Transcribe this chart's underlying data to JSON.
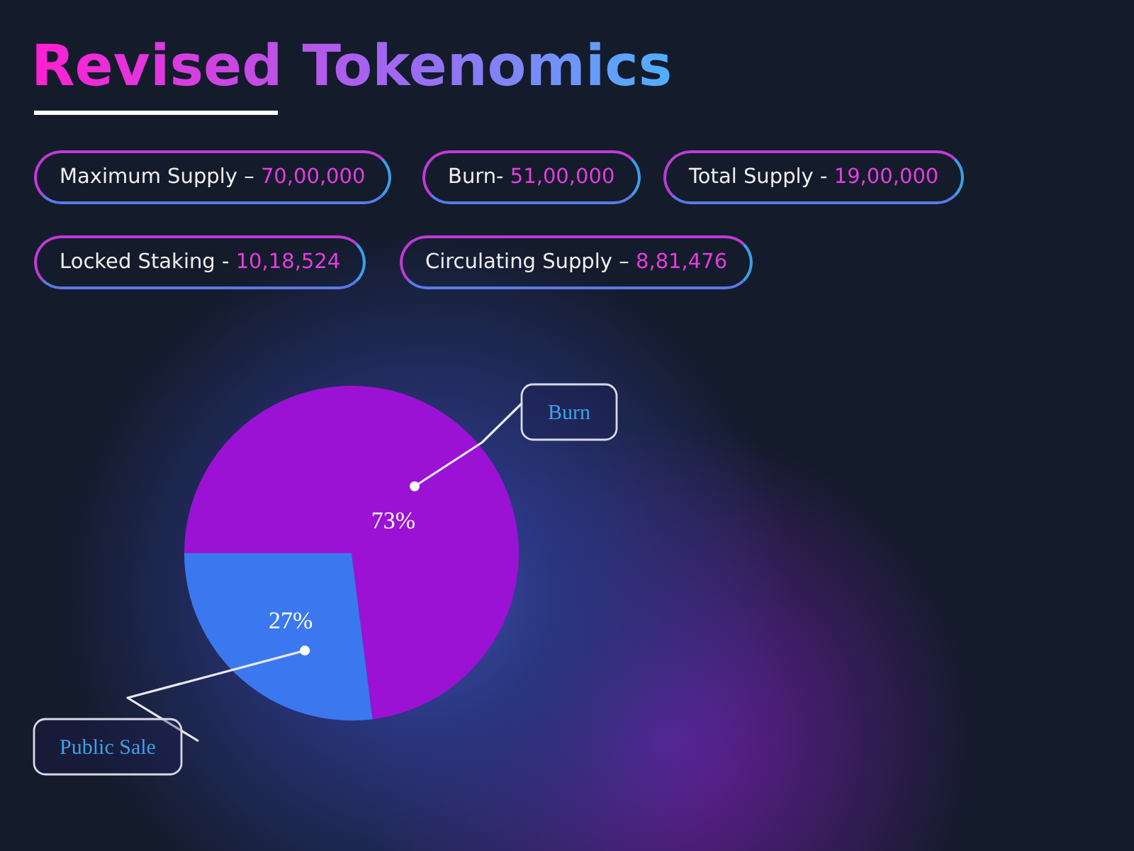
{
  "chart_data": {
    "type": "pie",
    "title": "Revised Tokenomics",
    "categories": [
      "Burn",
      "Public Sale"
    ],
    "values": [
      73,
      27
    ],
    "value_labels": [
      "73%",
      "27%"
    ],
    "colors": [
      "#9b12d4",
      "#3b78f0"
    ],
    "annotations": [
      "Maximum Supply – 70,00,000",
      "Burn- 51,00,000",
      "Total Supply - 19,00,000",
      "Locked Staking - 10,18,524",
      "Circulating Supply – 8,81,476"
    ],
    "legend": false
  }
}
